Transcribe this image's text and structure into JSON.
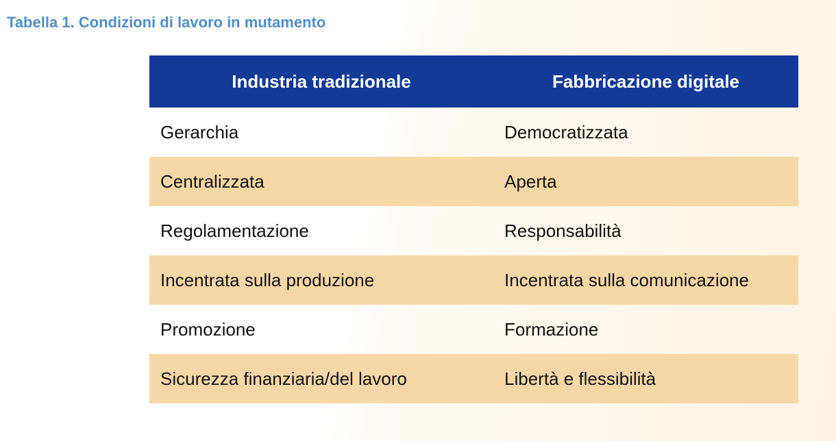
{
  "header": {
    "title": "Tabella 1. Condizioni di lavoro in mutamento"
  },
  "table": {
    "columns": [
      "Industria tradizionale",
      "Fabbricazione digitale"
    ],
    "rows": [
      [
        "Gerarchia",
        "Democratizzata"
      ],
      [
        "Centralizzata",
        "Aperta"
      ],
      [
        "Regolamentazione",
        "Responsabilità"
      ],
      [
        "Incentrata sulla produzione",
        "Incentrata sulla comunicazione"
      ],
      [
        "Promozione",
        "Formazione"
      ],
      [
        "Sicurezza finanziaria/del lavoro",
        "Libertà e flessibilità"
      ]
    ]
  }
}
